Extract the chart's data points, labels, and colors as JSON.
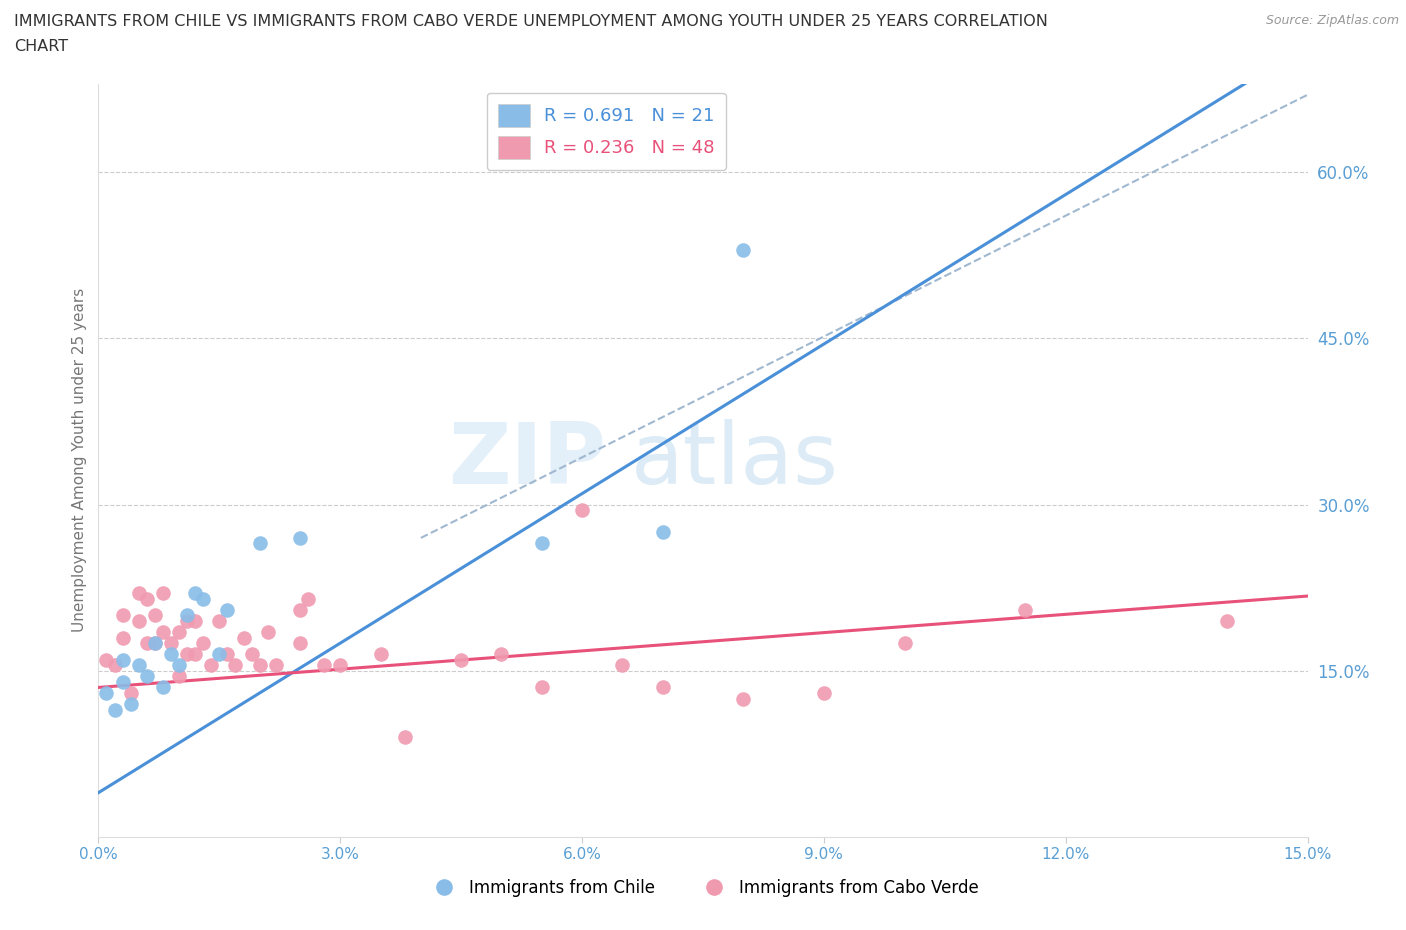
{
  "title_line1": "IMMIGRANTS FROM CHILE VS IMMIGRANTS FROM CABO VERDE UNEMPLOYMENT AMONG YOUTH UNDER 25 YEARS CORRELATION",
  "title_line2": "CHART",
  "source": "Source: ZipAtlas.com",
  "ylabel": "Unemployment Among Youth under 25 years",
  "xlim": [
    0.0,
    0.15
  ],
  "ylim": [
    0.0,
    0.68
  ],
  "xtick_vals": [
    0.0,
    0.03,
    0.06,
    0.09,
    0.12,
    0.15
  ],
  "xtick_labels": [
    "0.0%",
    "3.0%",
    "6.0%",
    "9.0%",
    "12.0%",
    "15.0%"
  ],
  "ytick_positions": [
    0.15,
    0.3,
    0.45,
    0.6
  ],
  "ytick_labels": [
    "15.0%",
    "30.0%",
    "45.0%",
    "60.0%"
  ],
  "grid_color": "#cccccc",
  "background_color": "#ffffff",
  "chile_color": "#89bde8",
  "cabo_verde_color": "#f09ab0",
  "chile_R": 0.691,
  "chile_N": 21,
  "cabo_verde_R": 0.236,
  "cabo_verde_N": 48,
  "chile_scatter_x": [
    0.001,
    0.002,
    0.003,
    0.003,
    0.004,
    0.005,
    0.006,
    0.007,
    0.008,
    0.009,
    0.01,
    0.011,
    0.012,
    0.013,
    0.015,
    0.016,
    0.02,
    0.025,
    0.055,
    0.07,
    0.08
  ],
  "chile_scatter_y": [
    0.13,
    0.115,
    0.14,
    0.16,
    0.12,
    0.155,
    0.145,
    0.175,
    0.135,
    0.165,
    0.155,
    0.2,
    0.22,
    0.215,
    0.165,
    0.205,
    0.265,
    0.27,
    0.265,
    0.275,
    0.53
  ],
  "cabo_verde_scatter_x": [
    0.001,
    0.002,
    0.003,
    0.003,
    0.004,
    0.005,
    0.005,
    0.006,
    0.006,
    0.007,
    0.007,
    0.008,
    0.008,
    0.009,
    0.01,
    0.01,
    0.011,
    0.011,
    0.012,
    0.012,
    0.013,
    0.014,
    0.015,
    0.016,
    0.017,
    0.018,
    0.019,
    0.02,
    0.021,
    0.022,
    0.025,
    0.025,
    0.026,
    0.028,
    0.03,
    0.035,
    0.038,
    0.045,
    0.05,
    0.055,
    0.06,
    0.065,
    0.07,
    0.08,
    0.09,
    0.1,
    0.115,
    0.14
  ],
  "cabo_verde_scatter_y": [
    0.16,
    0.155,
    0.18,
    0.2,
    0.13,
    0.195,
    0.22,
    0.215,
    0.175,
    0.2,
    0.175,
    0.185,
    0.22,
    0.175,
    0.185,
    0.145,
    0.195,
    0.165,
    0.195,
    0.165,
    0.175,
    0.155,
    0.195,
    0.165,
    0.155,
    0.18,
    0.165,
    0.155,
    0.185,
    0.155,
    0.175,
    0.205,
    0.215,
    0.155,
    0.155,
    0.165,
    0.09,
    0.16,
    0.165,
    0.135,
    0.295,
    0.155,
    0.135,
    0.125,
    0.13,
    0.175,
    0.205,
    0.195
  ],
  "chile_line_color": "#4a90d9",
  "cabo_verde_line_color": "#e8527a",
  "diagonal_line_color": "#a0b8d0",
  "tick_label_color": "#5a9fd4",
  "ylabel_color": "#777777"
}
